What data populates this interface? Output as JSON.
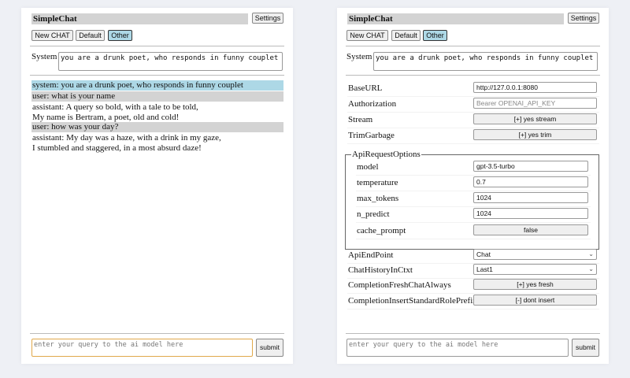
{
  "app_title": "SimpleChat",
  "settings_label": "Settings",
  "chat_buttons": {
    "new_chat": "New CHAT",
    "default": "Default",
    "other": "Other"
  },
  "system": {
    "label": "System",
    "value": "you are a drunk poet, who responds in funny couplet"
  },
  "messages": [
    {
      "role": "system",
      "lines": [
        "system: you are a drunk poet, who responds in funny couplet"
      ]
    },
    {
      "role": "user",
      "lines": [
        "user: what is your name"
      ]
    },
    {
      "role": "assistant",
      "lines": [
        "assistant: A query so bold, with a tale to be told,",
        "My name is Bertram, a poet, old and cold!"
      ]
    },
    {
      "role": "user",
      "lines": [
        "user: how was your day?"
      ]
    },
    {
      "role": "assistant",
      "lines": [
        "assistant: My day was a haze, with a drink in my gaze,",
        "I stumbled and staggered, in a most absurd daze!"
      ]
    }
  ],
  "query": {
    "placeholder": "enter your query to the ai model here"
  },
  "submit_label": "submit",
  "settings": {
    "base_url": {
      "label": "BaseURL",
      "value": "http://127.0.0.1:8080"
    },
    "authorization": {
      "label": "Authorization",
      "placeholder": "Bearer OPENAI_API_KEY"
    },
    "stream": {
      "label": "Stream",
      "value": "[+] yes stream"
    },
    "trim_garbage": {
      "label": "TrimGarbage",
      "value": "[+] yes trim"
    },
    "api_request_options": {
      "legend": "ApiRequestOptions",
      "model": {
        "label": "model",
        "value": "gpt-3.5-turbo"
      },
      "temperature": {
        "label": "temperature",
        "value": "0.7"
      },
      "max_tokens": {
        "label": "max_tokens",
        "value": "1024"
      },
      "n_predict": {
        "label": "n_predict",
        "value": "1024"
      },
      "cache_prompt": {
        "label": "cache_prompt",
        "value": "false"
      }
    },
    "api_endpoint": {
      "label": "ApiEndPoint",
      "value": "Chat"
    },
    "chat_history": {
      "label": "ChatHistoryInCtxt",
      "value": "Last1"
    },
    "fresh_chat": {
      "label": "CompletionFreshChatAlways",
      "value": "[+] yes fresh"
    },
    "role_prefix": {
      "label": "CompletionInsertStandardRolePrefix",
      "value": "[-] dont insert"
    }
  }
}
